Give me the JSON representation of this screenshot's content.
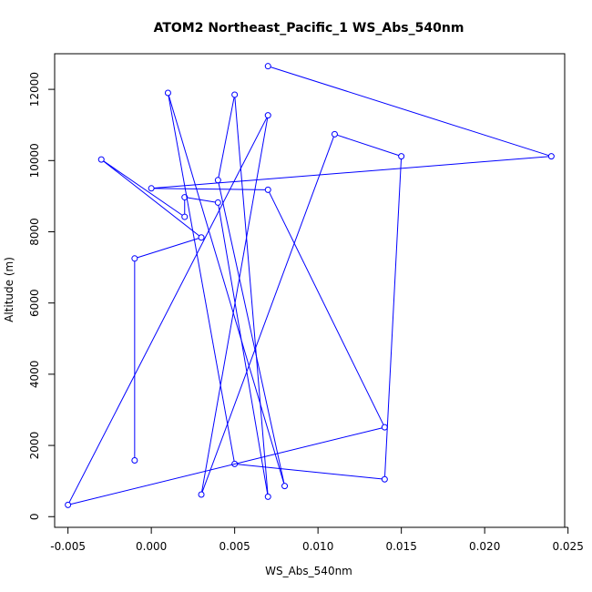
{
  "chart_data": {
    "type": "line",
    "title": "ATOM2 Northeast_Pacific_1 WS_Abs_540nm",
    "xlabel": "WS_Abs_540nm",
    "ylabel": "Altitude (m)",
    "xlim": [
      -0.0058,
      0.0248
    ],
    "ylim": [
      -300,
      13000
    ],
    "x_ticks": [
      -0.005,
      0.0,
      0.005,
      0.01,
      0.015,
      0.02,
      0.025
    ],
    "x_tick_labels": [
      "-0.005",
      "0.000",
      "0.005",
      "0.010",
      "0.015",
      "0.020",
      "0.025"
    ],
    "y_ticks": [
      0,
      2000,
      4000,
      6000,
      8000,
      10000,
      12000
    ],
    "y_tick_labels": [
      "0",
      "2000",
      "4000",
      "6000",
      "8000",
      "10000",
      "12000"
    ],
    "grid": false,
    "series_color": "#0000ff",
    "series": [
      {
        "points": [
          {
            "x": 0.007,
            "y": 12650
          },
          {
            "x": 0.024,
            "y": 10120
          },
          {
            "x": 0.0,
            "y": 9220
          },
          {
            "x": 0.007,
            "y": 9180
          },
          {
            "x": 0.014,
            "y": 2510
          },
          {
            "x": -0.005,
            "y": 330
          },
          {
            "x": 0.007,
            "y": 11270
          },
          {
            "x": 0.003,
            "y": 620
          },
          {
            "x": 0.011,
            "y": 10740
          },
          {
            "x": 0.015,
            "y": 10120
          },
          {
            "x": 0.014,
            "y": 1050
          },
          {
            "x": 0.005,
            "y": 1480
          },
          {
            "x": 0.001,
            "y": 11900
          },
          {
            "x": 0.008,
            "y": 860
          },
          {
            "x": 0.004,
            "y": 9450
          },
          {
            "x": 0.005,
            "y": 11850
          },
          {
            "x": 0.007,
            "y": 560
          },
          {
            "x": 0.004,
            "y": 8820
          },
          {
            "x": 0.002,
            "y": 8970
          },
          {
            "x": 0.002,
            "y": 8420
          },
          {
            "x": -0.003,
            "y": 10030
          },
          {
            "x": 0.003,
            "y": 7840
          },
          {
            "x": -0.001,
            "y": 7250
          },
          {
            "x": -0.001,
            "y": 1580
          }
        ]
      }
    ]
  }
}
